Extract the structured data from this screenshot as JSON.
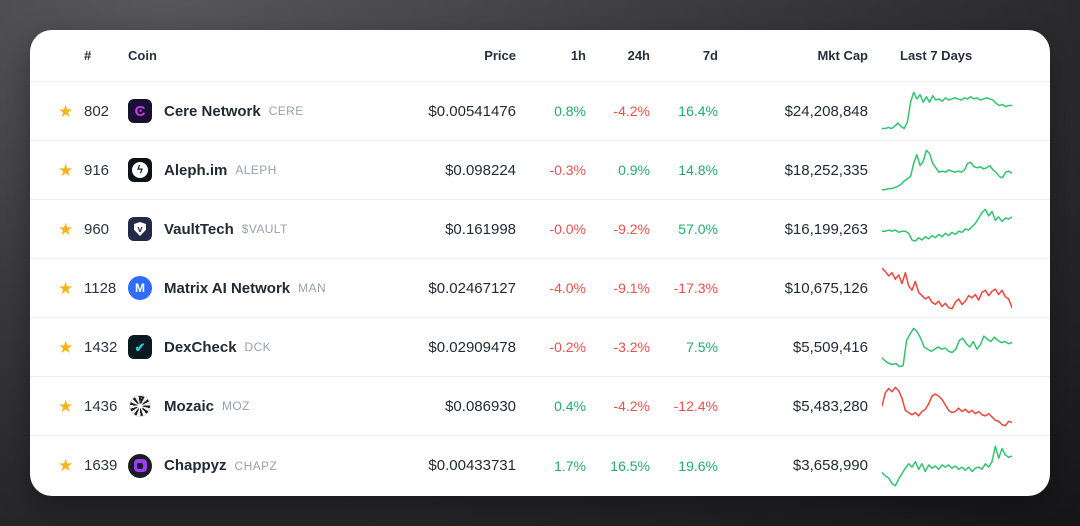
{
  "table": {
    "headers": {
      "rank": "#",
      "coin": "Coin",
      "price": "Price",
      "h1": "1h",
      "h24": "24h",
      "d7": "7d",
      "mktcap": "Mkt Cap",
      "last7": "Last 7 Days"
    },
    "colors": {
      "text_green": "#20ae66",
      "text_red": "#f04d4d",
      "spark_green": "#31c46f",
      "spark_red": "#f0453c",
      "star": "#f6b31b"
    },
    "star_icon": "★",
    "rows": [
      {
        "rank": "802",
        "name": "Cere Network",
        "symbol": "CERE",
        "price": "$0.00541476",
        "h1": "0.8%",
        "h1_dir": "up",
        "h24": "-4.2%",
        "h24_dir": "down",
        "d7": "16.4%",
        "d7_dir": "up",
        "mktcap": "$24,208,848",
        "logo": {
          "type": "glyph",
          "shape": "rounded",
          "bg": "#171033",
          "fg": "#d23be4",
          "glyph": "Ͼ",
          "size": 15
        },
        "spark_dir": "up",
        "spark": [
          36,
          36,
          35,
          36,
          34,
          31,
          34,
          36,
          30,
          12,
          3,
          9,
          5,
          12,
          7,
          12,
          6,
          10,
          9,
          11,
          8,
          10,
          9,
          8,
          9,
          10,
          8,
          9,
          7,
          9,
          8,
          10,
          9,
          8,
          9,
          10,
          13,
          15,
          14,
          16,
          15,
          15
        ]
      },
      {
        "rank": "916",
        "name": "Aleph.im",
        "symbol": "ALEPH",
        "price": "$0.098224",
        "h1": "-0.3%",
        "h1_dir": "down",
        "h24": "0.9%",
        "h24_dir": "up",
        "d7": "14.8%",
        "d7_dir": "up",
        "mktcap": "$18,252,335",
        "logo": {
          "type": "badge",
          "shape": "rounded",
          "bg": "#0e1218",
          "fg": "#0e1218",
          "glyph": "ϟ",
          "size": 11
        },
        "spark_dir": "up",
        "spark": [
          38,
          38,
          37,
          37,
          36,
          35,
          33,
          30,
          28,
          26,
          14,
          6,
          16,
          12,
          2,
          5,
          14,
          18,
          22,
          21,
          22,
          20,
          21,
          22,
          21,
          22,
          20,
          14,
          13,
          17,
          18,
          17,
          19,
          18,
          16,
          20,
          22,
          26,
          27,
          22,
          21,
          23
        ]
      },
      {
        "rank": "960",
        "name": "VaultTech",
        "symbol": "$VAULT",
        "price": "$0.161998",
        "h1": "-0.0%",
        "h1_dir": "down",
        "h24": "-9.2%",
        "h24_dir": "down",
        "d7": "57.0%",
        "d7_dir": "up",
        "mktcap": "$16,199,263",
        "logo": {
          "type": "shield",
          "shape": "rounded",
          "bg": "#232946",
          "fg": "#232946",
          "glyph": "v",
          "size": 9
        },
        "spark_dir": "up",
        "spark": [
          22,
          22,
          21,
          22,
          21,
          23,
          22,
          22,
          24,
          30,
          31,
          28,
          30,
          27,
          29,
          26,
          28,
          25,
          27,
          24,
          26,
          23,
          25,
          22,
          23,
          20,
          21,
          18,
          15,
          10,
          5,
          2,
          8,
          4,
          12,
          9,
          13,
          10,
          11,
          9
        ]
      },
      {
        "rank": "1128",
        "name": "Matrix AI Network",
        "symbol": "MAN",
        "price": "$0.02467127",
        "h1": "-4.0%",
        "h1_dir": "down",
        "h24": "-9.1%",
        "h24_dir": "down",
        "d7": "-17.3%",
        "d7_dir": "down",
        "mktcap": "$10,675,126",
        "logo": {
          "type": "glyph",
          "shape": "circle",
          "bg": "#2f6df6",
          "fg": "#ffffff",
          "glyph": "M",
          "size": 12
        },
        "spark_dir": "down",
        "spark": [
          2,
          5,
          9,
          6,
          12,
          8,
          16,
          6,
          18,
          22,
          14,
          24,
          27,
          30,
          28,
          33,
          35,
          32,
          37,
          34,
          38,
          39,
          33,
          30,
          35,
          32,
          27,
          29,
          26,
          31,
          24,
          22,
          27,
          23,
          21,
          26,
          22,
          28,
          30,
          38
        ]
      },
      {
        "rank": "1432",
        "name": "DexCheck",
        "symbol": "DCK",
        "price": "$0.02909478",
        "h1": "-0.2%",
        "h1_dir": "down",
        "h24": "-3.2%",
        "h24_dir": "down",
        "d7": "7.5%",
        "d7_dir": "up",
        "mktcap": "$5,509,416",
        "logo": {
          "type": "glyph",
          "shape": "rounded",
          "bg": "#0b1a20",
          "fg": "#3ac3d8",
          "glyph": "✔",
          "size": 13
        },
        "spark_dir": "up",
        "spark": [
          30,
          33,
          35,
          36,
          35,
          38,
          37,
          14,
          8,
          3,
          6,
          12,
          20,
          22,
          24,
          22,
          20,
          22,
          21,
          24,
          25,
          22,
          14,
          12,
          17,
          20,
          15,
          22,
          18,
          10,
          13,
          15,
          11,
          14,
          16,
          15,
          17,
          16
        ]
      },
      {
        "rank": "1436",
        "name": "Mozaic",
        "symbol": "MOZ",
        "price": "$0.086930",
        "h1": "0.4%",
        "h1_dir": "up",
        "h24": "-4.2%",
        "h24_dir": "down",
        "d7": "-12.4%",
        "d7_dir": "down",
        "mktcap": "$5,483,280",
        "logo": {
          "type": "swirl",
          "shape": "circle",
          "bg": "#ffffff",
          "fg": "#1c1c1c",
          "glyph": "",
          "size": 12
        },
        "spark_dir": "down",
        "spark": [
          20,
          8,
          4,
          7,
          3,
          6,
          13,
          24,
          26,
          28,
          26,
          29,
          25,
          23,
          18,
          11,
          9,
          11,
          14,
          19,
          24,
          26,
          25,
          22,
          25,
          23,
          26,
          24,
          27,
          25,
          28,
          29,
          27,
          30,
          33,
          34,
          37,
          38,
          34,
          35
        ]
      },
      {
        "rank": "1639",
        "name": "Chappyz",
        "symbol": "CHAPZ",
        "price": "$0.00433731",
        "h1": "1.7%",
        "h1_dir": "up",
        "h24": "16.5%",
        "h24_dir": "up",
        "d7": "19.6%",
        "d7_dir": "up",
        "mktcap": "$3,658,990",
        "logo": {
          "type": "dot",
          "shape": "circle",
          "bg": "#1b1b24",
          "fg": "#9b3df0",
          "glyph": "",
          "size": 12
        },
        "spark_dir": "up",
        "spark": [
          26,
          29,
          31,
          36,
          38,
          32,
          27,
          22,
          18,
          21,
          16,
          23,
          18,
          25,
          19,
          22,
          20,
          23,
          19,
          21,
          19,
          22,
          20,
          23,
          21,
          24,
          21,
          25,
          22,
          21,
          23,
          18,
          21,
          16,
          2,
          13,
          4,
          10,
          12,
          11
        ]
      }
    ]
  }
}
